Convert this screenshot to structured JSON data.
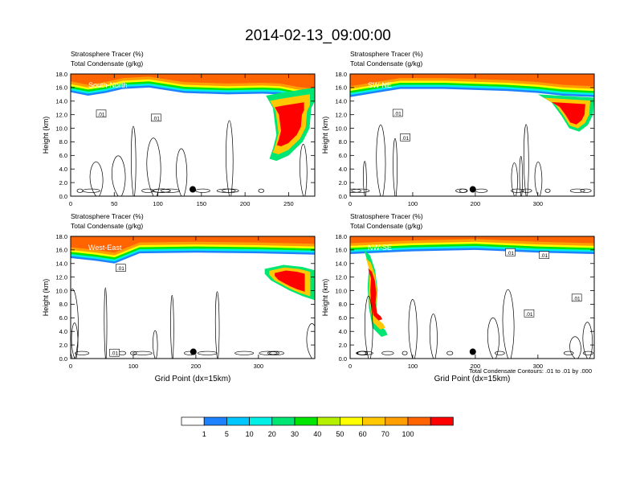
{
  "title": "2014-02-13_09:00:00",
  "footer_note": "Total Condensate Contours: .01 to .01 by .000",
  "colorbar": {
    "colors": [
      "#ffffff",
      "#1e82ff",
      "#00c8ff",
      "#00f0e6",
      "#00e673",
      "#00e600",
      "#b4f000",
      "#ffff00",
      "#ffc800",
      "#ffa000",
      "#ff6400",
      "#ff0000"
    ],
    "labels": [
      "1",
      "5",
      "10",
      "20",
      "30",
      "40",
      "50",
      "60",
      "70",
      "100"
    ]
  },
  "chart_data": [
    {
      "type": "contour",
      "cross_section": "South-North",
      "subtitle_line1": "Stratosphere Tracer   (%)",
      "subtitle_line2": "Total Condensate   (g/kg)",
      "ylabel": "Height (km)",
      "xlabel": "",
      "xlim": [
        0,
        280
      ],
      "ylim": [
        0,
        18
      ],
      "xticks": [
        "0",
        "50",
        "100",
        "150",
        "200",
        "250"
      ],
      "xtick_values": [
        0,
        50,
        100,
        150,
        200,
        250
      ],
      "yticks": [
        "0.0",
        "2.0",
        "4.0",
        "6.0",
        "8.0",
        "10.0",
        "12.0",
        "14.0",
        "16.0",
        "18.0"
      ],
      "ytick_values": [
        0,
        2,
        4,
        6,
        8,
        10,
        12,
        14,
        16,
        18
      ],
      "contour_labels": [
        {
          "text": ".01",
          "x": 35,
          "y": 12.1
        },
        {
          "text": ".01",
          "x": 98,
          "y": 11.5
        }
      ],
      "marker": {
        "x": 140,
        "y": 1.0
      },
      "tracer_top": [
        [
          0,
          15.3
        ],
        [
          20,
          14.8
        ],
        [
          40,
          15.2
        ],
        [
          60,
          15.8
        ],
        [
          90,
          16.0
        ],
        [
          130,
          15.2
        ],
        [
          180,
          15.0
        ],
        [
          220,
          15.1
        ],
        [
          240,
          15.0
        ],
        [
          260,
          14.5
        ],
        [
          280,
          14.2
        ]
      ],
      "intrusions": [
        [
          [
            224,
            14.8
          ],
          [
            232,
            13
          ],
          [
            234,
            11
          ],
          [
            236,
            9
          ],
          [
            232,
            7
          ],
          [
            228,
            5.5
          ],
          [
            236,
            5.2
          ],
          [
            250,
            6
          ],
          [
            266,
            8
          ],
          [
            274,
            10
          ],
          [
            276,
            13
          ],
          [
            280,
            14
          ],
          [
            280,
            16
          ],
          [
            240,
            15.2
          ]
        ]
      ]
    },
    {
      "type": "contour",
      "cross_section": "SW-NE",
      "subtitle_line1": "Stratosphere Tracer   (%)",
      "subtitle_line2": "Total Condensate   (g/kg)",
      "ylabel": "Height (km)",
      "xlabel": "",
      "xlim": [
        0,
        390
      ],
      "ylim": [
        0,
        18
      ],
      "xticks": [
        "0",
        "100",
        "200",
        "300"
      ],
      "xtick_values": [
        0,
        100,
        200,
        300
      ],
      "yticks": [
        "0.0",
        "2.0",
        "4.0",
        "6.0",
        "8.0",
        "10.0",
        "12.0",
        "14.0",
        "16.0",
        "18.0"
      ],
      "ytick_values": [
        0,
        2,
        4,
        6,
        8,
        10,
        12,
        14,
        16,
        18
      ],
      "contour_labels": [
        {
          "text": ".01",
          "x": 76,
          "y": 12.2
        },
        {
          "text": ".01",
          "x": 88,
          "y": 8.6
        }
      ],
      "marker": {
        "x": 196,
        "y": 1.0
      },
      "tracer_top": [
        [
          0,
          14.6
        ],
        [
          40,
          15.2
        ],
        [
          80,
          15.8
        ],
        [
          150,
          15.8
        ],
        [
          250,
          15.5
        ],
        [
          300,
          15.2
        ],
        [
          340,
          14.8
        ],
        [
          390,
          14.6
        ]
      ],
      "intrusions": [
        [
          [
            300,
            15.0
          ],
          [
            322,
            13.8
          ],
          [
            338,
            11.8
          ],
          [
            350,
            10
          ],
          [
            366,
            9.5
          ],
          [
            380,
            10.5
          ],
          [
            388,
            12
          ],
          [
            390,
            14.5
          ]
        ]
      ]
    },
    {
      "type": "contour",
      "cross_section": "West-East",
      "subtitle_line1": "Stratosphere Tracer   (%)",
      "subtitle_line2": "Total Condensate   (g/kg)",
      "ylabel": "Height (km)",
      "xlabel": "Grid Point (dx=15km)",
      "xlim": [
        0,
        390
      ],
      "ylim": [
        0,
        18
      ],
      "xticks": [
        "0",
        "100",
        "200",
        "300"
      ],
      "xtick_values": [
        0,
        100,
        200,
        300
      ],
      "yticks": [
        "0.0",
        "2.0",
        "4.0",
        "6.0",
        "8.0",
        "10.0",
        "12.0",
        "14.0",
        "16.0",
        "18.0"
      ],
      "ytick_values": [
        0,
        2,
        4,
        6,
        8,
        10,
        12,
        14,
        16,
        18
      ],
      "contour_labels": [
        {
          "text": ".01",
          "x": 80,
          "y": 13.3
        },
        {
          "text": ".01",
          "x": 70,
          "y": 0.8
        }
      ],
      "marker": {
        "x": 196,
        "y": 1.0
      },
      "tracer_top": [
        [
          0,
          14.8
        ],
        [
          40,
          14.4
        ],
        [
          70,
          14.0
        ],
        [
          110,
          15.5
        ],
        [
          200,
          15.6
        ],
        [
          300,
          15.5
        ],
        [
          390,
          15.3
        ]
      ],
      "intrusions": [
        [
          [
            310,
            13.2
          ],
          [
            340,
            13.8
          ],
          [
            370,
            13.5
          ],
          [
            390,
            13
          ],
          [
            390,
            8.6
          ],
          [
            370,
            9.2
          ],
          [
            350,
            10
          ],
          [
            320,
            11.5
          ],
          [
            310,
            12.5
          ]
        ]
      ]
    },
    {
      "type": "contour",
      "cross_section": "NW-SE",
      "subtitle_line1": "Stratosphere Tracer   (%)",
      "subtitle_line2": "Total Condensate   (g/kg)",
      "ylabel": "Height (km)",
      "xlabel": "Grid Point (dx=15km)",
      "xlim": [
        0,
        390
      ],
      "ylim": [
        0,
        18
      ],
      "xticks": [
        "0",
        "100",
        "200",
        "300"
      ],
      "xtick_values": [
        0,
        100,
        200,
        300
      ],
      "yticks": [
        "0.0",
        "2.0",
        "4.0",
        "6.0",
        "8.0",
        "10.0",
        "12.0",
        "14.0",
        "16.0",
        "18.0"
      ],
      "ytick_values": [
        0,
        2,
        4,
        6,
        8,
        10,
        12,
        14,
        16,
        18
      ],
      "contour_labels": [
        {
          "text": ".01",
          "x": 256,
          "y": 15.6
        },
        {
          "text": ".01",
          "x": 310,
          "y": 15.2
        },
        {
          "text": ".01",
          "x": 286,
          "y": 6.6
        },
        {
          "text": ".01",
          "x": 362,
          "y": 8.9
        }
      ],
      "marker": {
        "x": 196,
        "y": 1.0
      },
      "tracer_top": [
        [
          0,
          15.4
        ],
        [
          100,
          15.8
        ],
        [
          200,
          16.0
        ],
        [
          300,
          15.6
        ],
        [
          390,
          15.4
        ]
      ],
      "intrusions": [
        [
          [
            22,
            16
          ],
          [
            32,
            15.2
          ],
          [
            40,
            13
          ],
          [
            44,
            10
          ],
          [
            42,
            7.5
          ],
          [
            46,
            5
          ],
          [
            56,
            4.2
          ],
          [
            60,
            3.5
          ],
          [
            50,
            3.2
          ],
          [
            36,
            4.5
          ],
          [
            30,
            7.5
          ],
          [
            28,
            10.5
          ],
          [
            30,
            13.5
          ],
          [
            24,
            15.5
          ]
        ]
      ]
    }
  ]
}
